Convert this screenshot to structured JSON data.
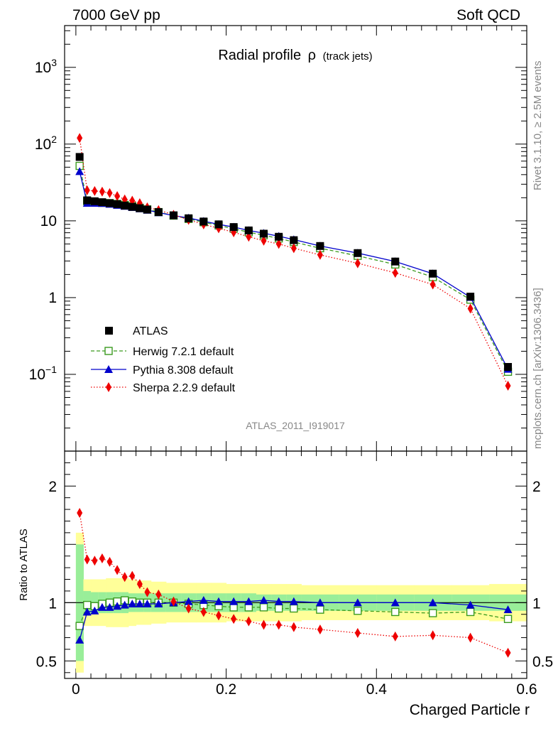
{
  "header": {
    "left": "7000 GeV pp",
    "right": "Soft QCD"
  },
  "side_labels": {
    "rivet": "Rivet 3.1.10, ≥ 2.5M events",
    "mcplots": "mcplots.cern.ch [arXiv:1306.3436]"
  },
  "chart_data": [
    {
      "type": "line",
      "panel": "main",
      "title": "Radial profile",
      "title_symbol": "ρ",
      "title_suffix": "(track jets)",
      "watermark": "ATLAS_2011_I919017",
      "yscale": "log",
      "xlim": [
        -0.015,
        0.6
      ],
      "ylim": [
        0.01,
        3500
      ],
      "yticks": [
        {
          "value": 0.1,
          "label": "10",
          "exp": "−1"
        },
        {
          "value": 1,
          "label": "1",
          "exp": ""
        },
        {
          "value": 10,
          "label": "10",
          "exp": ""
        },
        {
          "value": 100,
          "label": "10",
          "exp": "2"
        },
        {
          "value": 1000,
          "label": "10",
          "exp": "3"
        }
      ],
      "x": [
        0.005,
        0.015,
        0.025,
        0.035,
        0.045,
        0.055,
        0.065,
        0.075,
        0.085,
        0.095,
        0.11,
        0.13,
        0.15,
        0.17,
        0.19,
        0.21,
        0.23,
        0.25,
        0.27,
        0.29,
        0.325,
        0.375,
        0.425,
        0.475,
        0.525,
        0.575
      ],
      "series": [
        {
          "name": "ATLAS",
          "style": "data",
          "color": "#000000",
          "values": [
            68,
            18.5,
            18.0,
            17.5,
            17.0,
            16.5,
            15.8,
            15.2,
            14.6,
            14.0,
            13.0,
            11.8,
            10.8,
            9.8,
            9.0,
            8.3,
            7.5,
            6.8,
            6.2,
            5.6,
            4.7,
            3.8,
            2.95,
            2.05,
            1.03,
            0.125
          ]
        },
        {
          "name": "Herwig 7.2.1 default",
          "style": "open-square-dashed",
          "color": "#3a9a1e",
          "values": [
            52,
            18.0,
            17.5,
            17.2,
            17.0,
            16.6,
            16.1,
            15.5,
            14.8,
            14.1,
            13.0,
            11.7,
            10.6,
            9.6,
            8.7,
            7.9,
            7.1,
            6.5,
            5.9,
            5.3,
            4.4,
            3.5,
            2.7,
            1.85,
            0.94,
            0.108
          ]
        },
        {
          "name": "Pythia 8.308 default",
          "style": "triangle-solid",
          "color": "#0000cc",
          "values": [
            44,
            17.0,
            17.0,
            16.9,
            16.5,
            16.0,
            15.5,
            15.0,
            14.4,
            13.8,
            12.8,
            11.7,
            10.9,
            9.9,
            9.0,
            8.3,
            7.5,
            6.9,
            6.3,
            5.7,
            4.7,
            3.8,
            2.95,
            2.05,
            1.01,
            0.117
          ]
        },
        {
          "name": "Sherpa 2.2.9 default",
          "style": "diamond-dotted",
          "color": "#ee0000",
          "values": [
            120,
            25.0,
            24.5,
            24.0,
            23.0,
            21.0,
            19.0,
            18.3,
            17.0,
            15.0,
            13.8,
            12.0,
            10.3,
            9.0,
            8.0,
            7.1,
            6.2,
            5.5,
            5.0,
            4.4,
            3.6,
            2.8,
            2.1,
            1.48,
            0.72,
            0.071
          ]
        }
      ]
    },
    {
      "type": "line",
      "panel": "ratio",
      "ylabel": "Ratio to ATLAS",
      "xlabel": "Charged Particle r",
      "xlim": [
        -0.015,
        0.6
      ],
      "ylim": [
        0.35,
        2.3
      ],
      "xticks": [
        {
          "value": 0,
          "label": "0"
        },
        {
          "value": 0.2,
          "label": "0.2"
        },
        {
          "value": 0.4,
          "label": "0.4"
        },
        {
          "value": 0.6,
          "label": "0.6"
        }
      ],
      "yticks": [
        {
          "value": 0.5,
          "label": "0.5"
        },
        {
          "value": 1,
          "label": "1"
        },
        {
          "value": 2,
          "label": "2"
        }
      ],
      "band_edges": [
        0.0,
        0.01,
        0.02,
        0.03,
        0.04,
        0.05,
        0.06,
        0.07,
        0.08,
        0.09,
        0.1,
        0.12,
        0.14,
        0.16,
        0.18,
        0.2,
        0.22,
        0.24,
        0.26,
        0.28,
        0.3,
        0.35,
        0.4,
        0.45,
        0.5,
        0.55,
        0.6
      ],
      "stat_band_halfwidth": [
        0.5,
        0.1,
        0.09,
        0.09,
        0.09,
        0.09,
        0.09,
        0.08,
        0.08,
        0.08,
        0.08,
        0.08,
        0.08,
        0.08,
        0.08,
        0.08,
        0.08,
        0.07,
        0.07,
        0.07,
        0.07,
        0.07,
        0.07,
        0.07,
        0.07,
        0.07
      ],
      "syst_band_halfwidth": [
        0.6,
        0.2,
        0.2,
        0.2,
        0.21,
        0.21,
        0.21,
        0.2,
        0.19,
        0.19,
        0.18,
        0.17,
        0.17,
        0.17,
        0.17,
        0.16,
        0.16,
        0.16,
        0.16,
        0.16,
        0.15,
        0.15,
        0.15,
        0.15,
        0.15,
        0.16
      ],
      "x": [
        0.005,
        0.015,
        0.025,
        0.035,
        0.045,
        0.055,
        0.065,
        0.075,
        0.085,
        0.095,
        0.11,
        0.13,
        0.15,
        0.17,
        0.19,
        0.21,
        0.23,
        0.25,
        0.27,
        0.29,
        0.325,
        0.375,
        0.425,
        0.475,
        0.525,
        0.575
      ],
      "series": [
        {
          "name": "Herwig 7.2.1 default",
          "color": "#3a9a1e",
          "values": [
            0.8,
            0.98,
            0.97,
            0.99,
            1.0,
            1.01,
            1.02,
            1.01,
            1.0,
            1.0,
            1.0,
            1.0,
            0.99,
            0.98,
            0.97,
            0.96,
            0.96,
            0.96,
            0.95,
            0.95,
            0.94,
            0.93,
            0.92,
            0.91,
            0.92,
            0.86
          ]
        },
        {
          "name": "Pythia 8.308 default",
          "color": "#0000cc",
          "values": [
            0.68,
            0.92,
            0.93,
            0.96,
            0.96,
            0.97,
            0.98,
            0.99,
            0.99,
            0.99,
            0.99,
            1.0,
            1.01,
            1.02,
            1.01,
            1.01,
            1.01,
            1.02,
            1.01,
            1.01,
            1.0,
            1.0,
            1.0,
            1.0,
            0.98,
            0.94
          ]
        },
        {
          "name": "Sherpa 2.2.9 default",
          "color": "#ee0000",
          "values": [
            1.77,
            1.37,
            1.36,
            1.38,
            1.35,
            1.28,
            1.22,
            1.23,
            1.16,
            1.09,
            1.07,
            1.01,
            0.95,
            0.92,
            0.89,
            0.86,
            0.84,
            0.81,
            0.81,
            0.79,
            0.77,
            0.74,
            0.71,
            0.72,
            0.7,
            0.57
          ]
        }
      ]
    }
  ]
}
